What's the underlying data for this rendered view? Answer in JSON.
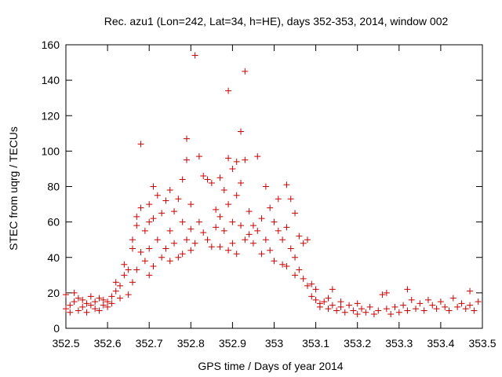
{
  "chart_data": {
    "type": "scatter",
    "title": "Rec. azu1 (Lon=242, Lat=34, h=HE), days 352-353, 2014, window 002",
    "xlabel": "GPS time / Days of year 2014",
    "ylabel": "STEC from uqrg / TECUs",
    "xlim": [
      352.5,
      353.5
    ],
    "ylim": [
      0,
      160
    ],
    "xticks": [
      "352.5",
      "352.6",
      "352.7",
      "352.8",
      "352.9",
      "353",
      "353.1",
      "353.2",
      "353.3",
      "353.4",
      "353.5"
    ],
    "yticks": [
      "0",
      "20",
      "40",
      "60",
      "80",
      "100",
      "120",
      "140",
      "160"
    ],
    "grid": false,
    "marker": "+",
    "color": "#cc0000",
    "series": [
      {
        "name": "STEC",
        "points": [
          [
            352.5,
            19
          ],
          [
            352.5,
            11
          ],
          [
            352.51,
            13
          ],
          [
            352.51,
            9
          ],
          [
            352.52,
            20
          ],
          [
            352.52,
            15
          ],
          [
            352.53,
            10
          ],
          [
            352.53,
            17
          ],
          [
            352.54,
            12
          ],
          [
            352.54,
            16
          ],
          [
            352.55,
            14
          ],
          [
            352.55,
            9
          ],
          [
            352.56,
            18
          ],
          [
            352.56,
            13
          ],
          [
            352.57,
            11
          ],
          [
            352.57,
            15
          ],
          [
            352.58,
            17
          ],
          [
            352.58,
            10
          ],
          [
            352.59,
            13
          ],
          [
            352.59,
            16
          ],
          [
            352.6,
            12
          ],
          [
            352.6,
            15
          ],
          [
            352.61,
            18
          ],
          [
            352.61,
            14
          ],
          [
            352.62,
            21
          ],
          [
            352.62,
            26
          ],
          [
            352.63,
            17
          ],
          [
            352.63,
            24
          ],
          [
            352.64,
            30
          ],
          [
            352.64,
            36
          ],
          [
            352.65,
            33
          ],
          [
            352.65,
            19
          ],
          [
            352.66,
            45
          ],
          [
            352.66,
            50
          ],
          [
            352.66,
            26
          ],
          [
            352.67,
            58
          ],
          [
            352.67,
            63
          ],
          [
            352.67,
            33
          ],
          [
            352.68,
            68
          ],
          [
            352.68,
            43
          ],
          [
            352.68,
            104
          ],
          [
            352.69,
            55
          ],
          [
            352.69,
            38
          ],
          [
            352.7,
            60
          ],
          [
            352.7,
            70
          ],
          [
            352.7,
            45
          ],
          [
            352.7,
            30
          ],
          [
            352.71,
            80
          ],
          [
            352.71,
            62
          ],
          [
            352.71,
            35
          ],
          [
            352.72,
            75
          ],
          [
            352.72,
            50
          ],
          [
            352.73,
            65
          ],
          [
            352.73,
            40
          ],
          [
            352.74,
            72
          ],
          [
            352.74,
            45
          ],
          [
            352.75,
            78
          ],
          [
            352.75,
            55
          ],
          [
            352.75,
            38
          ],
          [
            352.76,
            66
          ],
          [
            352.76,
            48
          ],
          [
            352.77,
            73
          ],
          [
            352.77,
            40
          ],
          [
            352.78,
            84
          ],
          [
            352.78,
            60
          ],
          [
            352.78,
            42
          ],
          [
            352.79,
            107
          ],
          [
            352.79,
            95
          ],
          [
            352.79,
            50
          ],
          [
            352.8,
            70
          ],
          [
            352.8,
            56
          ],
          [
            352.8,
            44
          ],
          [
            352.81,
            154
          ],
          [
            352.81,
            48
          ],
          [
            352.82,
            97
          ],
          [
            352.82,
            60
          ],
          [
            352.83,
            86
          ],
          [
            352.83,
            54
          ],
          [
            352.84,
            84
          ],
          [
            352.84,
            50
          ],
          [
            352.85,
            82
          ],
          [
            352.85,
            46
          ],
          [
            352.86,
            67
          ],
          [
            352.86,
            57
          ],
          [
            352.87,
            85
          ],
          [
            352.87,
            63
          ],
          [
            352.87,
            46
          ],
          [
            352.88,
            78
          ],
          [
            352.88,
            55
          ],
          [
            352.89,
            134
          ],
          [
            352.89,
            96
          ],
          [
            352.89,
            70
          ],
          [
            352.89,
            44
          ],
          [
            352.9,
            90
          ],
          [
            352.9,
            60
          ],
          [
            352.9,
            48
          ],
          [
            352.91,
            94
          ],
          [
            352.91,
            75
          ],
          [
            352.91,
            42
          ],
          [
            352.92,
            111
          ],
          [
            352.92,
            82
          ],
          [
            352.92,
            58
          ],
          [
            352.93,
            145
          ],
          [
            352.93,
            95
          ],
          [
            352.93,
            50
          ],
          [
            352.94,
            66
          ],
          [
            352.94,
            53
          ],
          [
            352.95,
            58
          ],
          [
            352.95,
            48
          ],
          [
            352.96,
            97
          ],
          [
            352.96,
            55
          ],
          [
            352.97,
            62
          ],
          [
            352.97,
            42
          ],
          [
            352.98,
            80
          ],
          [
            352.98,
            50
          ],
          [
            352.99,
            68
          ],
          [
            352.99,
            44
          ],
          [
            353.0,
            60
          ],
          [
            353.0,
            38
          ],
          [
            353.01,
            73
          ],
          [
            353.01,
            55
          ],
          [
            353.02,
            50
          ],
          [
            353.02,
            36
          ],
          [
            353.03,
            81
          ],
          [
            353.03,
            57
          ],
          [
            353.03,
            35
          ],
          [
            353.04,
            73
          ],
          [
            353.04,
            45
          ],
          [
            353.05,
            65
          ],
          [
            353.05,
            40
          ],
          [
            353.05,
            30
          ],
          [
            353.06,
            52
          ],
          [
            353.06,
            33
          ],
          [
            353.07,
            48
          ],
          [
            353.07,
            28
          ],
          [
            353.08,
            50
          ],
          [
            353.08,
            24
          ],
          [
            353.09,
            25
          ],
          [
            353.09,
            18
          ],
          [
            353.1,
            16
          ],
          [
            353.1,
            22
          ],
          [
            353.11,
            14
          ],
          [
            353.11,
            12
          ],
          [
            353.12,
            15
          ],
          [
            353.13,
            11
          ],
          [
            353.13,
            17
          ],
          [
            353.14,
            13
          ],
          [
            353.14,
            22
          ],
          [
            353.15,
            10
          ],
          [
            353.16,
            12
          ],
          [
            353.16,
            15
          ],
          [
            353.17,
            9
          ],
          [
            353.18,
            13
          ],
          [
            353.19,
            10
          ],
          [
            353.2,
            14
          ],
          [
            353.2,
            8
          ],
          [
            353.21,
            11
          ],
          [
            353.22,
            9
          ],
          [
            353.23,
            12
          ],
          [
            353.24,
            8
          ],
          [
            353.25,
            10
          ],
          [
            353.26,
            19
          ],
          [
            353.27,
            11
          ],
          [
            353.27,
            20
          ],
          [
            353.28,
            8
          ],
          [
            353.29,
            12
          ],
          [
            353.3,
            9
          ],
          [
            353.31,
            13
          ],
          [
            353.32,
            22
          ],
          [
            353.32,
            10
          ],
          [
            353.33,
            16
          ],
          [
            353.34,
            11
          ],
          [
            353.35,
            14
          ],
          [
            353.36,
            10
          ],
          [
            353.37,
            16
          ],
          [
            353.38,
            13
          ],
          [
            353.39,
            11
          ],
          [
            353.4,
            15
          ],
          [
            353.41,
            12
          ],
          [
            353.42,
            10
          ],
          [
            353.43,
            17
          ],
          [
            353.44,
            12
          ],
          [
            353.45,
            14
          ],
          [
            353.46,
            11
          ],
          [
            353.47,
            21
          ],
          [
            353.47,
            13
          ],
          [
            353.48,
            10
          ],
          [
            353.49,
            15
          ]
        ]
      }
    ]
  }
}
